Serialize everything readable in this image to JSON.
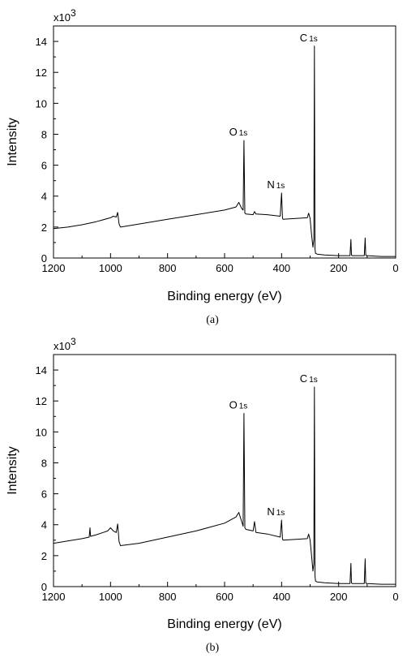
{
  "chart_data": [
    {
      "type": "line",
      "caption": "(a)",
      "xlabel": "Binding energy (eV)",
      "ylabel": "Intensity",
      "y_multiplier": "x10",
      "y_multiplier_exp": "3",
      "xlim": [
        1200,
        0
      ],
      "ylim": [
        0,
        15
      ],
      "x_reversed": true,
      "xticks": [
        1200,
        1000,
        800,
        600,
        400,
        200,
        0
      ],
      "yticks": [
        0,
        2,
        4,
        6,
        8,
        10,
        12,
        14
      ],
      "grid": false,
      "peaks": [
        {
          "main": "C",
          "sub": "1s",
          "x": 285,
          "y": 13.7
        },
        {
          "main": "O",
          "sub": "1s",
          "x": 532,
          "y": 7.6
        },
        {
          "main": "N",
          "sub": "1s",
          "x": 400,
          "y": 4.2
        }
      ],
      "series": [
        {
          "x": [
            1200,
            1150,
            1100,
            1050,
            1000,
            990,
            980,
            975,
            970,
            965,
            900,
            800,
            700,
            600,
            560,
            550,
            545,
            540,
            535,
            532,
            529,
            525,
            500,
            495,
            490,
            450,
            405,
            400,
            397,
            395,
            310,
            305,
            300,
            295,
            290,
            287,
            285,
            283,
            281,
            275,
            250,
            200,
            160,
            157,
            155,
            153,
            150,
            110,
            107,
            105,
            103,
            100,
            50,
            0
          ],
          "y": [
            1.9,
            2.0,
            2.15,
            2.35,
            2.6,
            2.7,
            2.65,
            2.95,
            2.2,
            2.0,
            2.2,
            2.5,
            2.8,
            3.1,
            3.3,
            3.6,
            3.4,
            3.2,
            3.1,
            7.6,
            2.9,
            2.85,
            2.8,
            3.0,
            2.85,
            2.8,
            2.7,
            4.2,
            2.6,
            2.5,
            2.6,
            2.9,
            2.55,
            1.5,
            0.7,
            1.2,
            13.7,
            0.6,
            0.3,
            0.25,
            0.2,
            0.15,
            0.15,
            1.2,
            0.2,
            0.15,
            0.15,
            0.15,
            1.3,
            0.2,
            0.15,
            0.15,
            0.1,
            0.1
          ]
        }
      ]
    },
    {
      "type": "line",
      "caption": "(b)",
      "xlabel": "Binding energy (eV)",
      "ylabel": "Intensity",
      "y_multiplier": "x10",
      "y_multiplier_exp": "3",
      "xlim": [
        1200,
        0
      ],
      "ylim": [
        0,
        15
      ],
      "x_reversed": true,
      "xticks": [
        1200,
        1000,
        800,
        600,
        400,
        200,
        0
      ],
      "yticks": [
        0,
        2,
        4,
        6,
        8,
        10,
        12,
        14
      ],
      "grid": false,
      "peaks": [
        {
          "main": "C",
          "sub": "1s",
          "x": 285,
          "y": 12.9
        },
        {
          "main": "O",
          "sub": "1s",
          "x": 532,
          "y": 11.2
        },
        {
          "main": "N",
          "sub": "1s",
          "x": 400,
          "y": 4.3
        }
      ],
      "series": [
        {
          "x": [
            1200,
            1150,
            1100,
            1075,
            1072,
            1070,
            1050,
            1010,
            1000,
            990,
            980,
            975,
            970,
            965,
            900,
            800,
            700,
            600,
            560,
            550,
            545,
            540,
            535,
            532,
            529,
            525,
            500,
            495,
            490,
            450,
            405,
            400,
            397,
            395,
            310,
            305,
            300,
            295,
            290,
            287,
            285,
            283,
            281,
            275,
            250,
            200,
            160,
            157,
            155,
            153,
            150,
            110,
            107,
            105,
            103,
            100,
            50,
            0
          ],
          "y": [
            2.8,
            2.95,
            3.1,
            3.2,
            3.8,
            3.25,
            3.35,
            3.6,
            3.8,
            3.6,
            3.5,
            4.05,
            2.9,
            2.65,
            2.8,
            3.2,
            3.6,
            4.1,
            4.5,
            4.8,
            4.5,
            4.2,
            3.9,
            11.2,
            3.8,
            3.7,
            3.6,
            4.2,
            3.5,
            3.4,
            3.2,
            4.3,
            3.1,
            3.0,
            3.1,
            3.4,
            3.0,
            2.0,
            1.0,
            1.5,
            12.9,
            0.7,
            0.35,
            0.3,
            0.25,
            0.2,
            0.2,
            1.5,
            0.25,
            0.2,
            0.2,
            0.2,
            1.8,
            0.25,
            0.2,
            0.2,
            0.15,
            0.15
          ]
        }
      ]
    }
  ]
}
